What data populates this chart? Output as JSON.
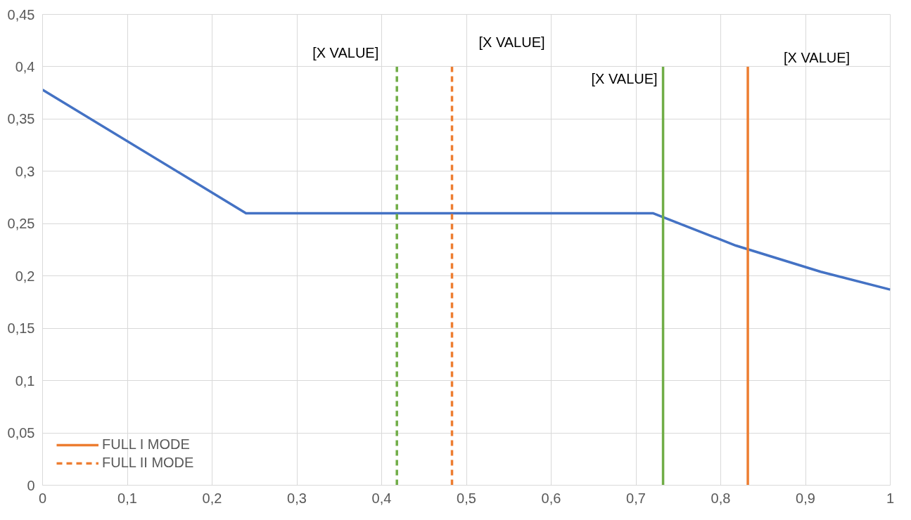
{
  "chart_data": {
    "type": "line",
    "xlim": [
      0,
      1
    ],
    "ylim": [
      0,
      0.45
    ],
    "xticks": [
      0,
      {
        "value": 0.1,
        "label": "0,1"
      },
      {
        "value": 0.2,
        "label": "0,2"
      },
      {
        "value": 0.3,
        "label": "0,3"
      },
      {
        "value": 0.4,
        "label": "0,4"
      },
      {
        "value": 0.5,
        "label": "0,5"
      },
      {
        "value": 0.6,
        "label": "0,6"
      },
      {
        "value": 0.7,
        "label": "0,7"
      },
      {
        "value": 0.8,
        "label": "0,8"
      },
      {
        "value": 0.9,
        "label": "0,9"
      },
      1
    ],
    "yticks": [
      0,
      {
        "value": 0.05,
        "label": "0,05"
      },
      {
        "value": 0.1,
        "label": "0,1"
      },
      {
        "value": 0.15,
        "label": "0,15"
      },
      {
        "value": 0.2,
        "label": "0,2"
      },
      {
        "value": 0.25,
        "label": "0,25"
      },
      {
        "value": 0.3,
        "label": "0,3"
      },
      {
        "value": 0.35,
        "label": "0,35"
      },
      {
        "value": 0.4,
        "label": "0,4"
      },
      {
        "value": 0.45,
        "label": "0,45"
      }
    ],
    "grid": true,
    "legend": "bottom left",
    "marker": "none",
    "series": [
      {
        "color": "#4472c4",
        "x": [
          0,
          0.24,
          0.72,
          0.818,
          0.918,
          1
        ],
        "values": [
          0.378,
          0.26,
          0.26,
          0.229,
          0.204,
          0.187
        ]
      },
      {
        "color": "#70ad47",
        "line_style": "dashed",
        "x": [
          0.418,
          0.418
        ],
        "values": [
          0,
          0.4
        ]
      },
      {
        "name": "FULL II MODE",
        "color": "#ed7d31",
        "line_style": "dashed",
        "x": [
          0.483,
          0.483
        ],
        "values": [
          0,
          0.4
        ]
      },
      {
        "color": "#70ad47",
        "x": [
          0.732,
          0.732
        ],
        "values": [
          0,
          0.4
        ]
      },
      {
        "name": "FULL I MODE",
        "color": "#ed7d31",
        "x": [
          0.832,
          0.832
        ],
        "values": [
          0,
          0.4
        ]
      }
    ],
    "annotations": [
      {
        "text": "[X VALUE]",
        "x": 0.418,
        "y": 0.4
      },
      {
        "text": "[X VALUE]",
        "x": 0.483,
        "y": 0.4
      },
      {
        "text": "[X VALUE]",
        "x": 0.732,
        "y": 0.4
      },
      {
        "text": "[X VALUE]",
        "x": 0.832,
        "y": 0.4
      }
    ]
  }
}
